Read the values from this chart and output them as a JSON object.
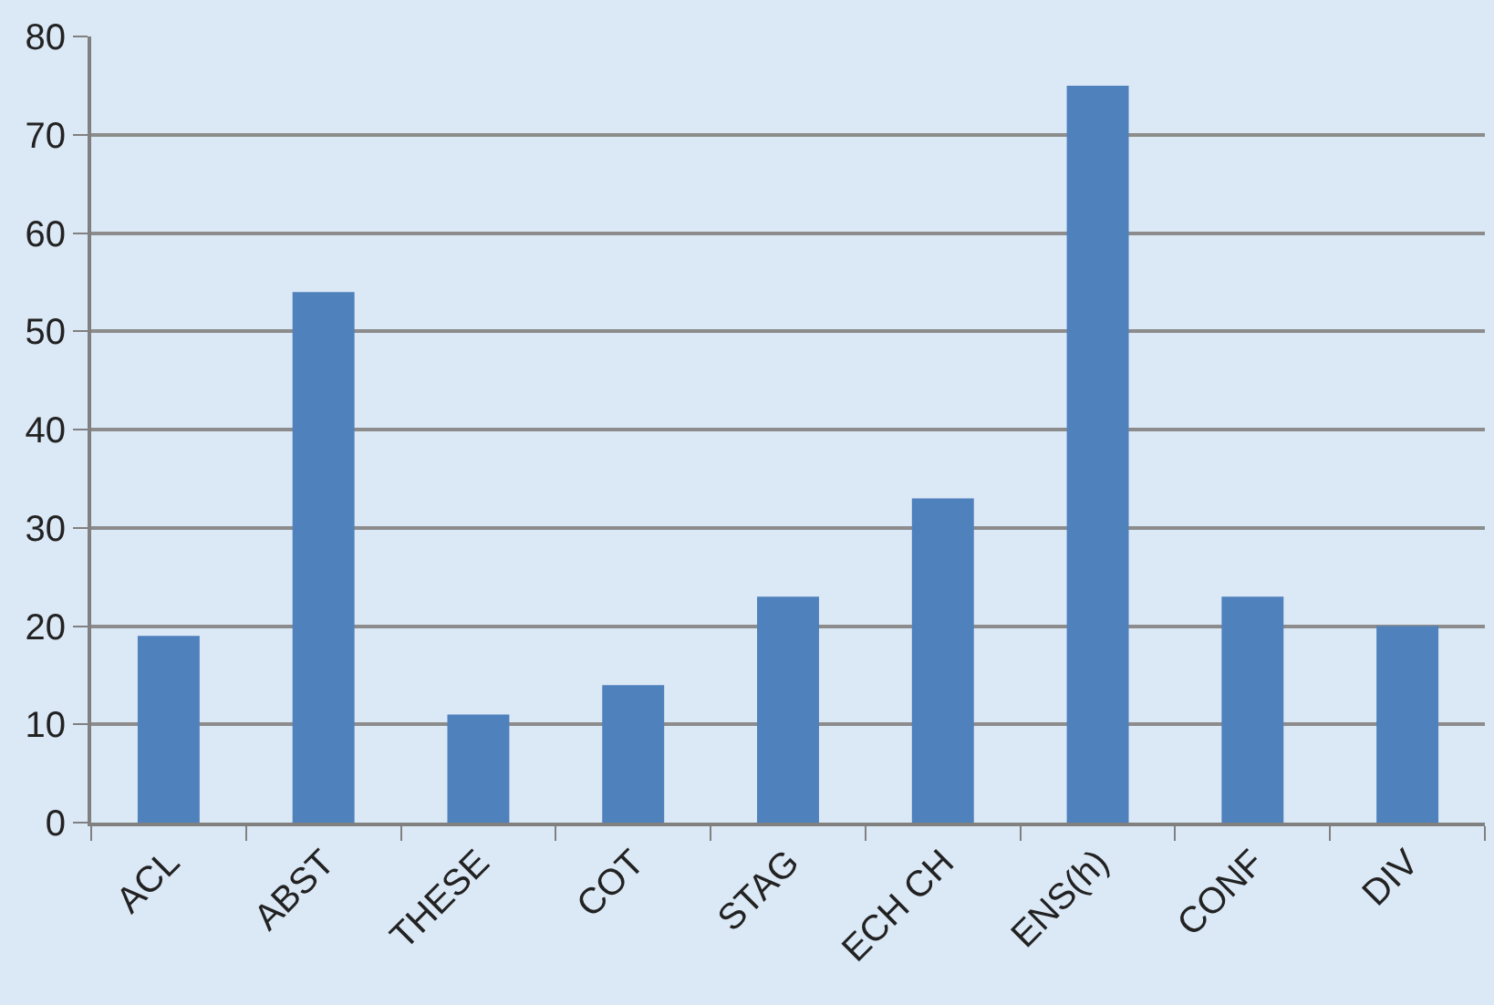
{
  "chart_data": {
    "type": "bar",
    "categories": [
      "ACL",
      "ABST",
      "THESE",
      "COT",
      "STAG",
      "ECH CH",
      "ENS(h)",
      "CONF",
      "DIV"
    ],
    "values": [
      19,
      54,
      11,
      14,
      23,
      33,
      75,
      23,
      20
    ],
    "color": "#4f81bd",
    "ylim": [
      0,
      80
    ],
    "yticks": [
      0,
      10,
      20,
      30,
      40,
      50,
      60,
      70,
      80
    ],
    "grid": "y",
    "legend": false
  }
}
